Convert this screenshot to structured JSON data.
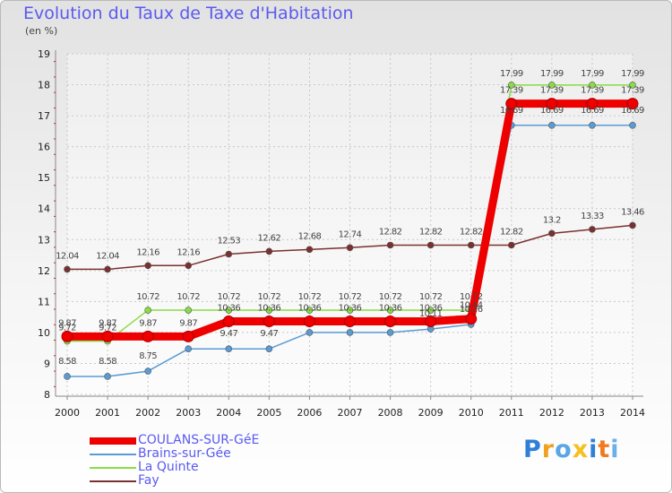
{
  "header": {
    "title": "Evolution du Taux de Taxe d'Habitation",
    "subtitle": "(en %)"
  },
  "logo": {
    "text": "Proxiti",
    "colors": [
      "#2e7fd8",
      "#f0a020",
      "#5aa5e6",
      "#f5c020",
      "#2e7fd8",
      "#f07a20",
      "#6bb0e8"
    ]
  },
  "chart_data": {
    "type": "line",
    "title": "Evolution du Taux de Taxe d'Habitation",
    "ylabel": "(en %)",
    "xlabel": "",
    "x": [
      "2000",
      "2001",
      "2002",
      "2003",
      "2004",
      "2005",
      "2006",
      "2007",
      "2008",
      "2009",
      "2010",
      "2011",
      "2012",
      "2013",
      "2014"
    ],
    "ylim": [
      8,
      19
    ],
    "yticks": [
      "8",
      "9",
      "10",
      "11",
      "12",
      "13",
      "14",
      "15",
      "16",
      "17",
      "18",
      "19"
    ],
    "grid": true,
    "legend_position": "bottom-left",
    "series": [
      {
        "name": "COULANS-SUR-GéE",
        "color": "#ee0000",
        "values": [
          9.87,
          9.87,
          9.87,
          9.87,
          10.36,
          10.36,
          10.36,
          10.36,
          10.36,
          10.36,
          10.44,
          17.39,
          17.39,
          17.39,
          17.39
        ],
        "labels": [
          "9.87",
          "9.87",
          "9.87",
          "9.87",
          "10.36",
          "10.36",
          "10.36",
          "10.36",
          "10.36",
          "10.36",
          "10.44",
          "17.39",
          "17.39",
          "17.39",
          "17.39"
        ]
      },
      {
        "name": "Brains-sur-Gée",
        "color": "#5a9bd4",
        "values": [
          8.58,
          8.58,
          8.75,
          9.47,
          9.47,
          9.47,
          10.0,
          10.0,
          10.0,
          10.11,
          10.26,
          16.69,
          16.69,
          16.69,
          16.69
        ],
        "labels": [
          "8.58",
          "8.58",
          "8.75",
          "",
          "9.47",
          "9.47",
          "",
          "",
          "",
          "10.11",
          "10.26",
          "16.69",
          "16.69",
          "16.69",
          "16.69"
        ]
      },
      {
        "name": "La Quinte",
        "color": "#88dd44",
        "values": [
          9.72,
          9.72,
          10.72,
          10.72,
          10.72,
          10.72,
          10.72,
          10.72,
          10.72,
          10.72,
          10.72,
          17.99,
          17.99,
          17.99,
          17.99
        ],
        "labels": [
          "9.72",
          "9.72",
          "10.72",
          "10.72",
          "10.72",
          "10.72",
          "10.72",
          "10.72",
          "10.72",
          "10.72",
          "10.72",
          "17.99",
          "17.99",
          "17.99",
          "17.99"
        ]
      },
      {
        "name": "Fay",
        "color": "#7a3030",
        "values": [
          12.04,
          12.04,
          12.16,
          12.16,
          12.53,
          12.62,
          12.68,
          12.74,
          12.82,
          12.82,
          12.82,
          12.82,
          13.2,
          13.33,
          13.46
        ],
        "labels": [
          "12.04",
          "12.04",
          "12.16",
          "12.16",
          "12.53",
          "12.62",
          "12.68",
          "12.74",
          "12.82",
          "12.82",
          "12.82",
          "12.82",
          "13.2",
          "13.33",
          "13.46"
        ]
      }
    ]
  }
}
